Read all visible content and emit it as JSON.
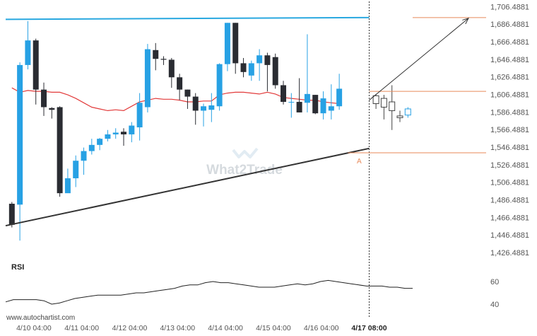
{
  "chart_data": {
    "type": "candlestick",
    "ylim": [
      1420,
      1710
    ],
    "y_ticks": [
      1706.4881,
      1686.4881,
      1666.4881,
      1646.4881,
      1626.4881,
      1606.4881,
      1586.4881,
      1566.4881,
      1546.4881,
      1526.4881,
      1506.4881,
      1486.4881,
      1466.4881,
      1446.4881,
      1426.4881
    ],
    "y_tick_labels": [
      "1,706.4881",
      "1,686.4881",
      "1,666.4881",
      "1,646.4881",
      "1,626.4881",
      "1,606.4881",
      "1,586.4881",
      "1,566.4881",
      "1,546.4881",
      "1,526.4881",
      "1,506.4881",
      "1,486.4881",
      "1,466.4881",
      "1,446.4881",
      "1,426.4881"
    ],
    "x_ticks": [
      {
        "index": 6,
        "label": "4/10 04:00"
      },
      {
        "index": 18,
        "label": "4/11 04:00"
      },
      {
        "index": 30,
        "label": "4/12 04:00"
      },
      {
        "index": 42,
        "label": "4/13 04:00"
      },
      {
        "index": 54,
        "label": "4/14 04:00"
      },
      {
        "index": 66,
        "label": "4/15 04:00"
      },
      {
        "index": 78,
        "label": "4/16 04:00"
      },
      {
        "index": 90,
        "label": "4/17 08:00",
        "bold": true
      }
    ],
    "forecast_start_index": 90,
    "candles": [
      [
        1482,
        1458,
        1484,
        1455
      ],
      [
        1481,
        1640,
        1643,
        1440
      ],
      [
        1640,
        1668,
        1690,
        1635
      ],
      [
        1668,
        1612,
        1670,
        1595
      ],
      [
        1612,
        1592,
        1620,
        1582
      ],
      [
        1591,
        1589,
        1592,
        1579
      ],
      [
        1592,
        1494,
        1593,
        1490
      ],
      [
        1494,
        1511,
        1522,
        1505
      ],
      [
        1511,
        1531,
        1537,
        1501
      ],
      [
        1531,
        1542,
        1546,
        1515
      ],
      [
        1542,
        1549,
        1556,
        1538
      ],
      [
        1549,
        1556,
        1557,
        1543
      ],
      [
        1556,
        1561,
        1566,
        1553
      ],
      [
        1561,
        1563,
        1568,
        1556
      ],
      [
        1564,
        1561,
        1568,
        1548
      ],
      [
        1561,
        1571,
        1575,
        1552
      ],
      [
        1569,
        1597,
        1608,
        1554
      ],
      [
        1592,
        1658,
        1664,
        1586
      ],
      [
        1657,
        1647,
        1665,
        1634
      ],
      [
        1647,
        1646,
        1650,
        1640
      ],
      [
        1646,
        1626,
        1648,
        1614
      ],
      [
        1626,
        1612,
        1630,
        1600
      ],
      [
        1612,
        1604,
        1612,
        1590
      ],
      [
        1604,
        1588,
        1608,
        1572
      ],
      [
        1588,
        1593,
        1596,
        1570
      ],
      [
        1589,
        1594,
        1608,
        1575
      ],
      [
        1593,
        1641,
        1642,
        1588
      ],
      [
        1641,
        1688,
        1688,
        1633
      ],
      [
        1688,
        1642,
        1688,
        1630
      ],
      [
        1642,
        1632,
        1648,
        1626
      ],
      [
        1628,
        1642,
        1645,
        1622
      ],
      [
        1642,
        1651,
        1658,
        1622
      ],
      [
        1651,
        1640,
        1654,
        1610
      ],
      [
        1649,
        1617,
        1653,
        1613
      ],
      [
        1617,
        1598,
        1622,
        1595
      ],
      [
        1598,
        1598,
        1608,
        1580
      ],
      [
        1598,
        1586,
        1625,
        1586
      ],
      [
        1597,
        1607,
        1675,
        1586
      ],
      [
        1606,
        1585,
        1606,
        1584
      ],
      [
        1585,
        1602,
        1610,
        1578
      ],
      [
        1588,
        1593,
        1618,
        1578
      ],
      [
        1593,
        1613,
        1630,
        1589
      ]
    ],
    "ma_line": [
      1614,
      1609,
      1611,
      1610,
      1610,
      1609,
      1609,
      1606,
      1602,
      1597,
      1592,
      1590,
      1588,
      1589,
      1588,
      1593,
      1598,
      1600,
      1602,
      1601,
      1601,
      1600,
      1598,
      1598,
      1599,
      1599,
      1606,
      1608,
      1609,
      1609,
      1608,
      1607,
      1609,
      1607,
      1603,
      1602,
      1601,
      1600,
      1600,
      1598,
      1597,
      1596
    ],
    "rsi": {
      "label": "RSI",
      "ticks": [
        60,
        40
      ],
      "values": [
        42,
        44,
        44,
        44,
        44,
        43,
        40,
        41,
        43,
        45,
        46,
        47,
        48,
        48,
        48,
        48,
        49,
        50,
        50,
        51,
        52,
        53,
        54,
        56,
        57,
        57,
        59,
        60,
        59,
        59,
        58,
        57,
        56,
        55,
        55,
        55,
        56,
        57,
        58,
        57,
        58,
        60,
        61,
        60,
        59,
        58,
        57,
        56,
        56,
        56,
        55,
        55,
        54,
        54
      ]
    },
    "levels": {
      "resistance_line": {
        "start": [
          0,
          1692
        ],
        "end": [
          90,
          1694
        ]
      },
      "support_line": {
        "start": [
          0,
          1457
        ],
        "end": [
          90,
          1545
        ]
      },
      "level_upper": 1610,
      "level_lower": 1540,
      "projection_target": 1694,
      "projection_start": 1600,
      "point_label": "A"
    }
  },
  "colors": {
    "bull": "#27a1e4",
    "bear": "#2a2c32",
    "ma": "#e23b3b",
    "resistance": "#29a8e0",
    "support": "#333333",
    "level": "#e88a5a",
    "rsi": "#222222",
    "axis_text": "#555555"
  },
  "watermark": "What2Trade",
  "footer": {
    "source": "www.autochartist.com"
  }
}
